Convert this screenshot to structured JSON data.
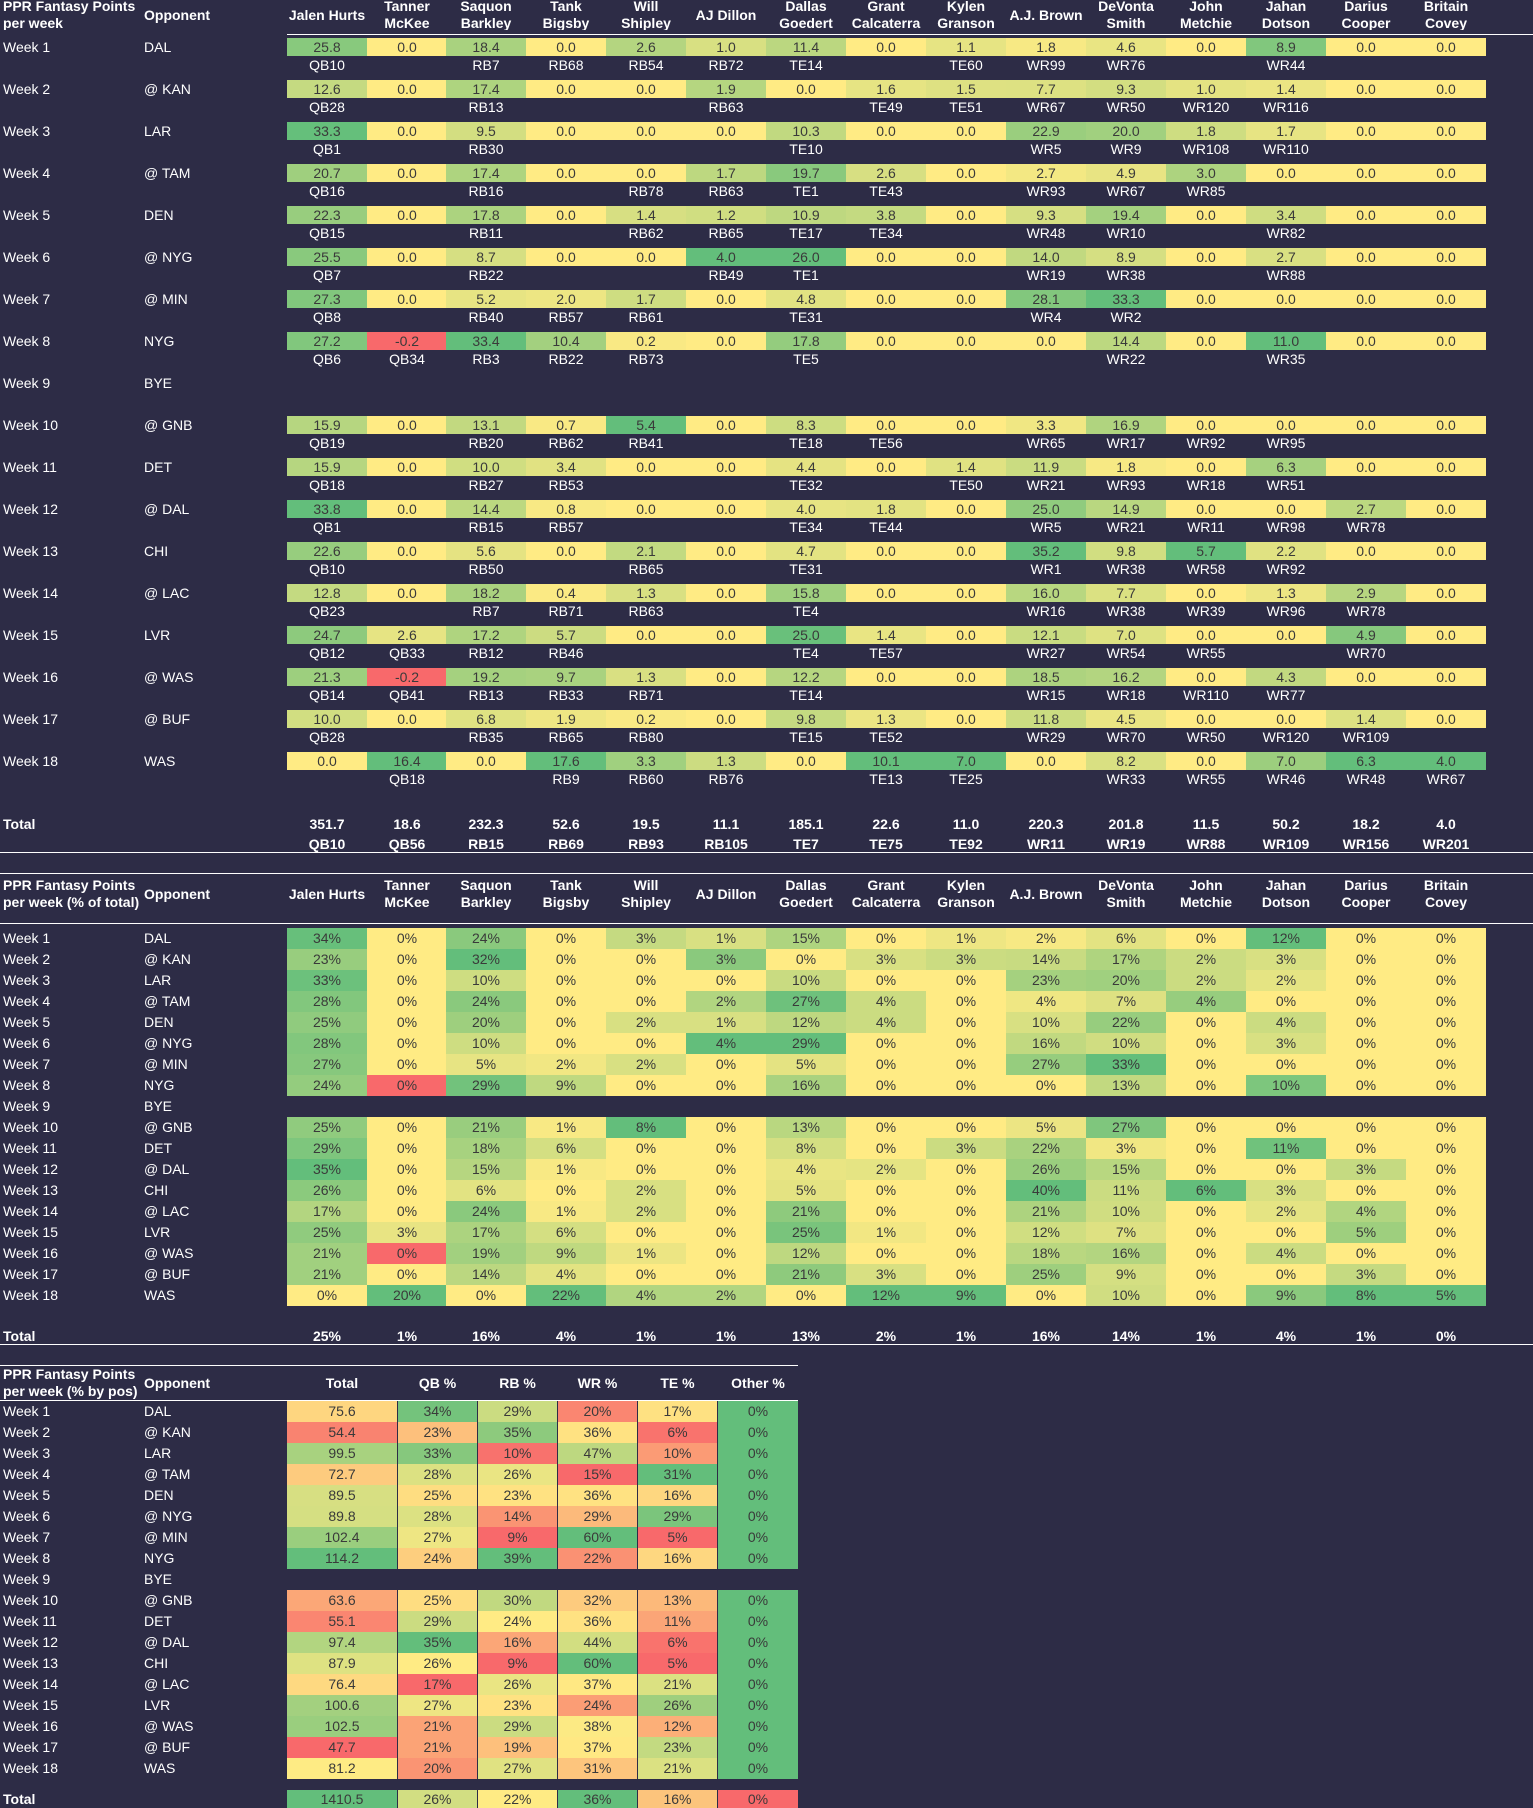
{
  "players": [
    "Jalen Hurts",
    "Tanner McKee",
    "Saquon Barkley",
    "Tank Bigsby",
    "Will Shipley",
    "AJ Dillon",
    "Dallas Goedert",
    "Grant Calcaterra",
    "Kylen Granson",
    "A.J. Brown",
    "DeVonta Smith",
    "John Metchie",
    "Jahan Dotson",
    "Darius Cooper",
    "Britain Covey"
  ],
  "player_headers": [
    "Jalen Hurts",
    "Tanner\nMcKee",
    "Saquon\nBarkley",
    "Tank\nBigsby",
    "Will\nShipley",
    "AJ Dillon",
    "Dallas\nGoedert",
    "Grant\nCalcaterra",
    "Kylen\nGranson",
    "A.J. Brown",
    "DeVonta\nSmith",
    "John\nMetchie",
    "Jahan\nDotson",
    "Darius\nCooper",
    "Britain Covey"
  ],
  "weeks": [
    "Week 1",
    "Week 2",
    "Week 3",
    "Week 4",
    "Week 5",
    "Week 6",
    "Week 7",
    "Week 8",
    "Week 9",
    "Week 10",
    "Week 11",
    "Week 12",
    "Week 13",
    "Week 14",
    "Week 15",
    "Week 16",
    "Week 17",
    "Week 18"
  ],
  "opponents": [
    "DAL",
    "@ KAN",
    "LAR",
    "@ TAM",
    "DEN",
    "@ NYG",
    "@ MIN",
    "NYG",
    "BYE",
    "@ GNB",
    "DET",
    "@ DAL",
    "CHI",
    "@ LAC",
    "LVR",
    "@ WAS",
    "@ BUF",
    "WAS"
  ],
  "opponent_header": "Opponent",
  "total_label": "Total",
  "colors": {
    "background": "#2d2c46",
    "yellow": "#ffeb84",
    "green": "#63be7b",
    "red": "#f8696b"
  },
  "points_table": {
    "title": "PPR Fantasy Points per week",
    "rows": [
      [
        "25.8",
        "0.0",
        "18.4",
        "0.0",
        "2.6",
        "1.0",
        "11.4",
        "0.0",
        "1.1",
        "1.8",
        "4.6",
        "0.0",
        "8.9",
        "0.0",
        "0.0"
      ],
      [
        "12.6",
        "0.0",
        "17.4",
        "0.0",
        "0.0",
        "1.9",
        "0.0",
        "1.6",
        "1.5",
        "7.7",
        "9.3",
        "1.0",
        "1.4",
        "0.0",
        "0.0"
      ],
      [
        "33.3",
        "0.0",
        "9.5",
        "0.0",
        "0.0",
        "0.0",
        "10.3",
        "0.0",
        "0.0",
        "22.9",
        "20.0",
        "1.8",
        "1.7",
        "0.0",
        "0.0"
      ],
      [
        "20.7",
        "0.0",
        "17.4",
        "0.0",
        "0.0",
        "1.7",
        "19.7",
        "2.6",
        "0.0",
        "2.7",
        "4.9",
        "3.0",
        "0.0",
        "0.0",
        "0.0"
      ],
      [
        "22.3",
        "0.0",
        "17.8",
        "0.0",
        "1.4",
        "1.2",
        "10.9",
        "3.8",
        "0.0",
        "9.3",
        "19.4",
        "0.0",
        "3.4",
        "0.0",
        "0.0"
      ],
      [
        "25.5",
        "0.0",
        "8.7",
        "0.0",
        "0.0",
        "4.0",
        "26.0",
        "0.0",
        "0.0",
        "14.0",
        "8.9",
        "0.0",
        "2.7",
        "0.0",
        "0.0"
      ],
      [
        "27.3",
        "0.0",
        "5.2",
        "2.0",
        "1.7",
        "0.0",
        "4.8",
        "0.0",
        "0.0",
        "28.1",
        "33.3",
        "0.0",
        "0.0",
        "0.0",
        "0.0"
      ],
      [
        "27.2",
        "-0.2",
        "33.4",
        "10.4",
        "0.2",
        "0.0",
        "17.8",
        "0.0",
        "0.0",
        "0.0",
        "14.4",
        "0.0",
        "11.0",
        "0.0",
        "0.0"
      ],
      null,
      [
        "15.9",
        "0.0",
        "13.1",
        "0.7",
        "5.4",
        "0.0",
        "8.3",
        "0.0",
        "0.0",
        "3.3",
        "16.9",
        "0.0",
        "0.0",
        "0.0",
        "0.0"
      ],
      [
        "15.9",
        "0.0",
        "10.0",
        "3.4",
        "0.0",
        "0.0",
        "4.4",
        "0.0",
        "1.4",
        "11.9",
        "1.8",
        "0.0",
        "6.3",
        "0.0",
        "0.0"
      ],
      [
        "33.8",
        "0.0",
        "14.4",
        "0.8",
        "0.0",
        "0.0",
        "4.0",
        "1.8",
        "0.0",
        "25.0",
        "14.9",
        "0.0",
        "0.0",
        "2.7",
        "0.0"
      ],
      [
        "22.6",
        "0.0",
        "5.6",
        "0.0",
        "2.1",
        "0.0",
        "4.7",
        "0.0",
        "0.0",
        "35.2",
        "9.8",
        "5.7",
        "2.2",
        "0.0",
        "0.0"
      ],
      [
        "12.8",
        "0.0",
        "18.2",
        "0.4",
        "1.3",
        "0.0",
        "15.8",
        "0.0",
        "0.0",
        "16.0",
        "7.7",
        "0.0",
        "1.3",
        "2.9",
        "0.0"
      ],
      [
        "24.7",
        "2.6",
        "17.2",
        "5.7",
        "0.0",
        "0.0",
        "25.0",
        "1.4",
        "0.0",
        "12.1",
        "7.0",
        "0.0",
        "0.0",
        "4.9",
        "0.0"
      ],
      [
        "21.3",
        "-0.2",
        "19.2",
        "9.7",
        "1.3",
        "0.0",
        "12.2",
        "0.0",
        "0.0",
        "18.5",
        "16.2",
        "0.0",
        "4.3",
        "0.0",
        "0.0"
      ],
      [
        "10.0",
        "0.0",
        "6.8",
        "1.9",
        "0.2",
        "0.0",
        "9.8",
        "1.3",
        "0.0",
        "11.8",
        "4.5",
        "0.0",
        "0.0",
        "1.4",
        "0.0"
      ],
      [
        "0.0",
        "16.4",
        "0.0",
        "17.6",
        "3.3",
        "1.3",
        "0.0",
        "10.1",
        "7.0",
        "0.0",
        "8.2",
        "0.0",
        "7.0",
        "6.3",
        "4.0"
      ]
    ],
    "ranks": [
      [
        "QB10",
        "",
        "RB7",
        "RB68",
        "RB54",
        "RB72",
        "TE14",
        "",
        "TE60",
        "WR99",
        "WR76",
        "",
        "WR44",
        "",
        ""
      ],
      [
        "QB28",
        "",
        "RB13",
        "",
        "",
        "RB63",
        "",
        "TE49",
        "TE51",
        "WR67",
        "WR50",
        "WR120",
        "WR116",
        "",
        ""
      ],
      [
        "QB1",
        "",
        "RB30",
        "",
        "",
        "",
        "TE10",
        "",
        "",
        "WR5",
        "WR9",
        "WR108",
        "WR110",
        "",
        ""
      ],
      [
        "QB16",
        "",
        "RB16",
        "",
        "RB78",
        "RB63",
        "TE1",
        "TE43",
        "",
        "WR93",
        "WR67",
        "WR85",
        "",
        "",
        ""
      ],
      [
        "QB15",
        "",
        "RB11",
        "",
        "RB62",
        "RB65",
        "TE17",
        "TE34",
        "",
        "WR48",
        "WR10",
        "",
        "WR82",
        "",
        ""
      ],
      [
        "QB7",
        "",
        "RB22",
        "",
        "",
        "RB49",
        "TE1",
        "",
        "",
        "WR19",
        "WR38",
        "",
        "WR88",
        "",
        ""
      ],
      [
        "QB8",
        "",
        "RB40",
        "RB57",
        "RB61",
        "",
        "TE31",
        "",
        "",
        "WR4",
        "WR2",
        "",
        "",
        "",
        ""
      ],
      [
        "QB6",
        "QB34",
        "RB3",
        "RB22",
        "RB73",
        "",
        "TE5",
        "",
        "",
        "",
        "WR22",
        "",
        "WR35",
        "",
        ""
      ],
      null,
      [
        "QB19",
        "",
        "RB20",
        "RB62",
        "RB41",
        "",
        "TE18",
        "TE56",
        "",
        "WR65",
        "WR17",
        "WR92",
        "WR95",
        "",
        ""
      ],
      [
        "QB18",
        "",
        "RB27",
        "RB53",
        "",
        "",
        "TE32",
        "",
        "TE50",
        "WR21",
        "WR93",
        "WR18",
        "WR51",
        "",
        ""
      ],
      [
        "QB1",
        "",
        "RB15",
        "RB57",
        "",
        "",
        "TE34",
        "TE44",
        "",
        "WR5",
        "WR21",
        "WR11",
        "WR98",
        "WR78",
        ""
      ],
      [
        "QB10",
        "",
        "RB50",
        "",
        "RB65",
        "",
        "TE31",
        "",
        "",
        "WR1",
        "WR38",
        "WR58",
        "WR92",
        "",
        ""
      ],
      [
        "QB23",
        "",
        "RB7",
        "RB71",
        "RB63",
        "",
        "TE4",
        "",
        "",
        "WR16",
        "WR38",
        "WR39",
        "WR96",
        "WR78",
        ""
      ],
      [
        "QB12",
        "QB33",
        "RB12",
        "RB46",
        "",
        "",
        "TE4",
        "TE57",
        "",
        "WR27",
        "WR54",
        "WR55",
        "",
        "WR70",
        ""
      ],
      [
        "QB14",
        "QB41",
        "RB13",
        "RB33",
        "RB71",
        "",
        "TE14",
        "",
        "",
        "WR15",
        "WR18",
        "WR110",
        "WR77",
        "",
        ""
      ],
      [
        "QB28",
        "",
        "RB35",
        "RB65",
        "RB80",
        "",
        "TE15",
        "TE52",
        "",
        "WR29",
        "WR70",
        "WR50",
        "WR120",
        "WR109",
        ""
      ],
      [
        "",
        "QB18",
        "",
        "RB9",
        "RB60",
        "RB76",
        "",
        "TE13",
        "TE25",
        "",
        "WR33",
        "WR55",
        "WR46",
        "WR48",
        "WR67"
      ]
    ],
    "totals": [
      "351.7",
      "18.6",
      "232.3",
      "52.6",
      "19.5",
      "11.1",
      "185.1",
      "22.6",
      "11.0",
      "220.3",
      "201.8",
      "11.5",
      "50.2",
      "18.2",
      "4.0"
    ],
    "total_ranks": [
      "QB10",
      "QB56",
      "RB15",
      "RB69",
      "RB93",
      "RB105",
      "TE7",
      "TE75",
      "TE92",
      "WR11",
      "WR19",
      "WR88",
      "WR109",
      "WR156",
      "WR201"
    ]
  },
  "pct_table": {
    "title": "PPR Fantasy Points per week (% of total)",
    "rows": [
      [
        "34%",
        "0%",
        "24%",
        "0%",
        "3%",
        "1%",
        "15%",
        "0%",
        "1%",
        "2%",
        "6%",
        "0%",
        "12%",
        "0%",
        "0%"
      ],
      [
        "23%",
        "0%",
        "32%",
        "0%",
        "0%",
        "3%",
        "0%",
        "3%",
        "3%",
        "14%",
        "17%",
        "2%",
        "3%",
        "0%",
        "0%"
      ],
      [
        "33%",
        "0%",
        "10%",
        "0%",
        "0%",
        "0%",
        "10%",
        "0%",
        "0%",
        "23%",
        "20%",
        "2%",
        "2%",
        "0%",
        "0%"
      ],
      [
        "28%",
        "0%",
        "24%",
        "0%",
        "0%",
        "2%",
        "27%",
        "4%",
        "0%",
        "4%",
        "7%",
        "4%",
        "0%",
        "0%",
        "0%"
      ],
      [
        "25%",
        "0%",
        "20%",
        "0%",
        "2%",
        "1%",
        "12%",
        "4%",
        "0%",
        "10%",
        "22%",
        "0%",
        "4%",
        "0%",
        "0%"
      ],
      [
        "28%",
        "0%",
        "10%",
        "0%",
        "0%",
        "4%",
        "29%",
        "0%",
        "0%",
        "16%",
        "10%",
        "0%",
        "3%",
        "0%",
        "0%"
      ],
      [
        "27%",
        "0%",
        "5%",
        "2%",
        "2%",
        "0%",
        "5%",
        "0%",
        "0%",
        "27%",
        "33%",
        "0%",
        "0%",
        "0%",
        "0%"
      ],
      [
        "24%",
        "0%",
        "29%",
        "9%",
        "0%",
        "0%",
        "16%",
        "0%",
        "0%",
        "0%",
        "13%",
        "0%",
        "10%",
        "0%",
        "0%"
      ],
      null,
      [
        "25%",
        "0%",
        "21%",
        "1%",
        "8%",
        "0%",
        "13%",
        "0%",
        "0%",
        "5%",
        "27%",
        "0%",
        "0%",
        "0%",
        "0%"
      ],
      [
        "29%",
        "0%",
        "18%",
        "6%",
        "0%",
        "0%",
        "8%",
        "0%",
        "3%",
        "22%",
        "3%",
        "0%",
        "11%",
        "0%",
        "0%"
      ],
      [
        "35%",
        "0%",
        "15%",
        "1%",
        "0%",
        "0%",
        "4%",
        "2%",
        "0%",
        "26%",
        "15%",
        "0%",
        "0%",
        "3%",
        "0%"
      ],
      [
        "26%",
        "0%",
        "6%",
        "0%",
        "2%",
        "0%",
        "5%",
        "0%",
        "0%",
        "40%",
        "11%",
        "6%",
        "3%",
        "0%",
        "0%"
      ],
      [
        "17%",
        "0%",
        "24%",
        "1%",
        "2%",
        "0%",
        "21%",
        "0%",
        "0%",
        "21%",
        "10%",
        "0%",
        "2%",
        "4%",
        "0%"
      ],
      [
        "25%",
        "3%",
        "17%",
        "6%",
        "0%",
        "0%",
        "25%",
        "1%",
        "0%",
        "12%",
        "7%",
        "0%",
        "0%",
        "5%",
        "0%"
      ],
      [
        "21%",
        "0%",
        "19%",
        "9%",
        "1%",
        "0%",
        "12%",
        "0%",
        "0%",
        "18%",
        "16%",
        "0%",
        "4%",
        "0%",
        "0%"
      ],
      [
        "21%",
        "0%",
        "14%",
        "4%",
        "0%",
        "0%",
        "21%",
        "3%",
        "0%",
        "25%",
        "9%",
        "0%",
        "0%",
        "3%",
        "0%"
      ],
      [
        "0%",
        "20%",
        "0%",
        "22%",
        "4%",
        "2%",
        "0%",
        "12%",
        "9%",
        "0%",
        "10%",
        "0%",
        "9%",
        "8%",
        "5%"
      ]
    ],
    "totals": [
      "25%",
      "1%",
      "16%",
      "4%",
      "1%",
      "1%",
      "13%",
      "2%",
      "1%",
      "16%",
      "14%",
      "1%",
      "4%",
      "1%",
      "0%"
    ]
  },
  "pos_table": {
    "title": "PPR Fantasy Points per week (% by pos)",
    "headers": [
      "Total",
      "QB %",
      "RB %",
      "WR %",
      "TE %",
      "Other %"
    ],
    "rows": [
      [
        "75.6",
        "34%",
        "29%",
        "20%",
        "17%",
        "0%"
      ],
      [
        "54.4",
        "23%",
        "35%",
        "36%",
        "6%",
        "0%"
      ],
      [
        "99.5",
        "33%",
        "10%",
        "47%",
        "10%",
        "0%"
      ],
      [
        "72.7",
        "28%",
        "26%",
        "15%",
        "31%",
        "0%"
      ],
      [
        "89.5",
        "25%",
        "23%",
        "36%",
        "16%",
        "0%"
      ],
      [
        "89.8",
        "28%",
        "14%",
        "29%",
        "29%",
        "0%"
      ],
      [
        "102.4",
        "27%",
        "9%",
        "60%",
        "5%",
        "0%"
      ],
      [
        "114.2",
        "24%",
        "39%",
        "22%",
        "16%",
        "0%"
      ],
      null,
      [
        "63.6",
        "25%",
        "30%",
        "32%",
        "13%",
        "0%"
      ],
      [
        "55.1",
        "29%",
        "24%",
        "36%",
        "11%",
        "0%"
      ],
      [
        "97.4",
        "35%",
        "16%",
        "44%",
        "6%",
        "0%"
      ],
      [
        "87.9",
        "26%",
        "9%",
        "60%",
        "5%",
        "0%"
      ],
      [
        "76.4",
        "17%",
        "26%",
        "37%",
        "21%",
        "0%"
      ],
      [
        "100.6",
        "27%",
        "23%",
        "24%",
        "26%",
        "0%"
      ],
      [
        "102.5",
        "21%",
        "29%",
        "38%",
        "12%",
        "0%"
      ],
      [
        "47.7",
        "21%",
        "19%",
        "37%",
        "23%",
        "0%"
      ],
      [
        "81.2",
        "20%",
        "27%",
        "31%",
        "21%",
        "0%"
      ]
    ],
    "totals": [
      "1410.5",
      "26%",
      "22%",
      "36%",
      "16%",
      "0%"
    ]
  }
}
